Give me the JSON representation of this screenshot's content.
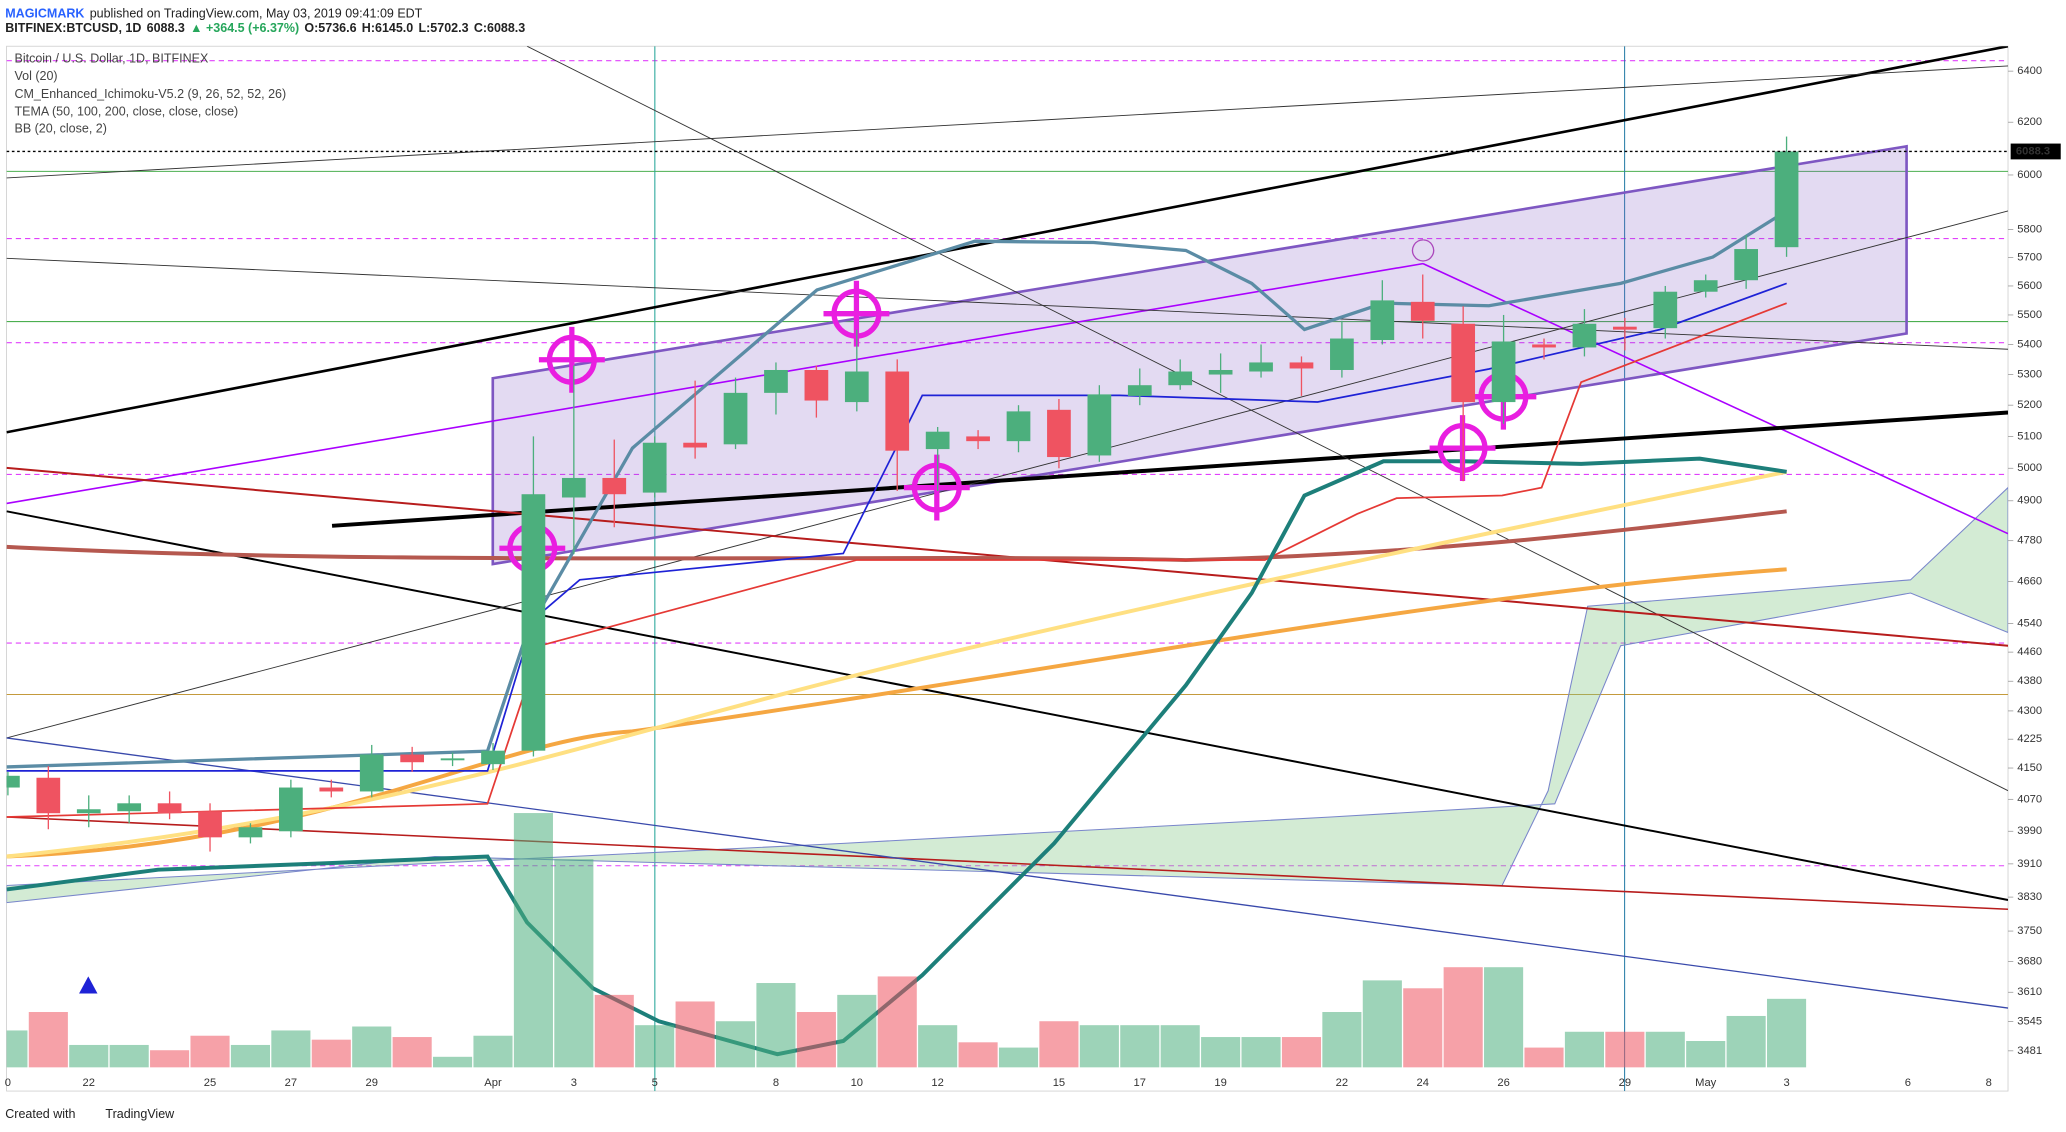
{
  "header": {
    "author": "MAGICMARK",
    "published": "published on TradingView.com, May 03, 2019 09:41:09 EDT",
    "symbol": "BITFINEX:BTCUSD, 1D",
    "last": "6088.3",
    "change": "▲ +364.5 (+6.37%)",
    "open": "O:5736.6",
    "high": "H:6145.0",
    "low": "L:5702.3",
    "close": "C:6088.3"
  },
  "indicators": [
    "Bitcoin / U.S. Dollar, 1D, BITFINEX",
    "Vol (20)",
    "CM_Enhanced_Ichimoku-V5.2 (9, 26, 52, 52, 26)",
    "TEMA (50, 100, 200, close, close, close)",
    "BB (20, close, 2)"
  ],
  "footer": {
    "created": "Created with",
    "brand": "TradingView"
  },
  "chart_data": {
    "type": "candlestick",
    "categories": [
      "0",
      null,
      "22",
      null,
      null,
      "25",
      null,
      "27",
      null,
      "29",
      null,
      null,
      "Apr",
      null,
      "3",
      null,
      "5",
      null,
      null,
      "8",
      null,
      "10",
      null,
      "12",
      null,
      null,
      "15",
      null,
      "17",
      null,
      "19",
      null,
      null,
      "22",
      null,
      "24",
      null,
      "26",
      null,
      null,
      "29",
      null,
      "May",
      null,
      "3",
      null,
      null,
      "6",
      null,
      "8"
    ],
    "open": [
      4100,
      4125,
      4035,
      4040,
      4060,
      4040,
      3975,
      3990,
      4100,
      4090,
      4185,
      4170,
      4160,
      4195,
      4910,
      4970,
      4925,
      5080,
      5075,
      5240,
      5315,
      5210,
      5310,
      5060,
      5100,
      5085,
      5185,
      5040,
      5230,
      5265,
      5300,
      5310,
      5340,
      5315,
      5415,
      5545,
      5470,
      5210,
      5400,
      5390,
      5460,
      5455,
      5580,
      5620,
      5736.6,
      null,
      null,
      null,
      null,
      null
    ],
    "high": [
      4140,
      4155,
      4080,
      4080,
      4090,
      4060,
      4010,
      4120,
      4120,
      4210,
      4205,
      4190,
      4215,
      5100,
      5330,
      5090,
      5100,
      5280,
      5290,
      5340,
      5330,
      5450,
      5350,
      5130,
      5120,
      5200,
      5220,
      5265,
      5320,
      5350,
      5370,
      5400,
      5360,
      5480,
      5620,
      5640,
      5530,
      5500,
      5420,
      5520,
      5490,
      5600,
      5640,
      5780,
      6145.0,
      null,
      null,
      null,
      null,
      null
    ],
    "low": [
      4080,
      3995,
      4000,
      4010,
      4020,
      3940,
      3960,
      3975,
      4075,
      4075,
      4140,
      4155,
      4145,
      4180,
      4740,
      4820,
      4910,
      5030,
      5060,
      5170,
      5160,
      5180,
      4930,
      4930,
      5060,
      5050,
      5000,
      5020,
      5200,
      5250,
      5240,
      5290,
      5230,
      5290,
      5400,
      5420,
      4960,
      5140,
      5350,
      5360,
      5380,
      5420,
      5560,
      5590,
      5702.3,
      null,
      null,
      null,
      null,
      null
    ],
    "close": [
      4130,
      4035,
      4045,
      4060,
      4035,
      3975,
      4000,
      4100,
      4090,
      4185,
      4165,
      4175,
      4195,
      4920,
      4970,
      4920,
      5080,
      5065,
      5240,
      5315,
      5215,
      5310,
      5055,
      5115,
      5085,
      5180,
      5035,
      5235,
      5265,
      5310,
      5315,
      5340,
      5320,
      5420,
      5550,
      5480,
      5210,
      5410,
      5390,
      5470,
      5450,
      5580,
      5620,
      5730,
      6088.3,
      null,
      null,
      null,
      null,
      null
    ],
    "volume": [
      28,
      42,
      17,
      17,
      13,
      24,
      17,
      28,
      21,
      31,
      23,
      8,
      24,
      193,
      158,
      55,
      32,
      50,
      35,
      64,
      42,
      55,
      69,
      32,
      19,
      15,
      35,
      32,
      32,
      32,
      23,
      23,
      23,
      42,
      66,
      60,
      76,
      76,
      15,
      27,
      27,
      27,
      20,
      39,
      52,
      null,
      null,
      null,
      null,
      null
    ],
    "up_color": "#4caf7d",
    "down_color": "#ef5361",
    "log_scale": true,
    "grid": false,
    "ylim": [
      3395,
      6500
    ],
    "yticks": [
      3481,
      3545,
      3610,
      3680,
      3750,
      3830,
      3910,
      3990,
      4070,
      4150,
      4225,
      4300,
      4380,
      4460,
      4540,
      4660,
      4780,
      4900,
      5000,
      5100,
      5200,
      5300,
      5400,
      5500,
      5600,
      5700,
      5800,
      6000,
      6200,
      6400
    ]
  }
}
